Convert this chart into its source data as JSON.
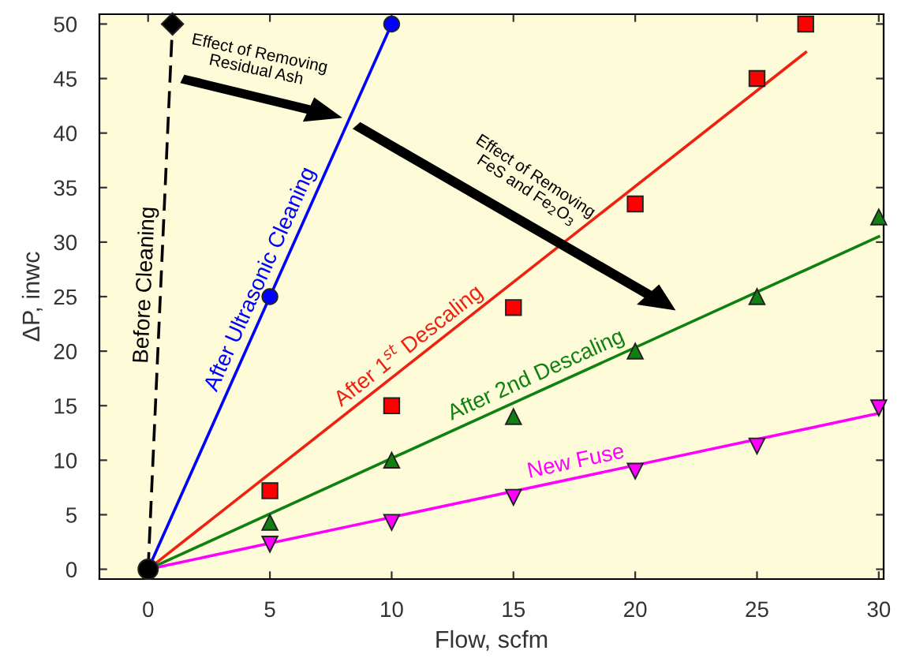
{
  "chart_data": {
    "type": "scatter",
    "xlabel": "Flow, scfm",
    "ylabel": "ΔP, inwc",
    "xlim": [
      -2,
      30.2
    ],
    "ylim": [
      -0.9,
      50.9
    ],
    "xticks": [
      0,
      5,
      10,
      15,
      20,
      25,
      30
    ],
    "yticks": [
      0,
      5,
      10,
      15,
      20,
      25,
      30,
      35,
      40,
      45,
      50
    ],
    "grid": false,
    "legend": false,
    "annotations": [
      "Effect of Removing\nResidual Ash",
      "Effect of Removing\nFeS and Fe$_{2}$O$_{3}$"
    ],
    "series": [
      {
        "type": "line",
        "name": "Before Cleaning",
        "color": "#000000",
        "x": [
          0,
          1
        ],
        "values": [
          0,
          50
        ],
        "line_style": "dashed",
        "marker": "none"
      },
      {
        "color": "#000000",
        "x": [
          0,
          1
        ],
        "values": [
          0,
          50
        ],
        "marker": [
          "circle",
          "diamond"
        ]
      },
      {
        "type": "line",
        "name": "After Ultrasonic Cleaning",
        "color": "#0000ff",
        "x": [
          0,
          10
        ],
        "values": [
          0,
          50
        ],
        "marker": "none"
      },
      {
        "color": "#0000ff",
        "x": [
          5,
          10
        ],
        "values": [
          25,
          50
        ],
        "marker": "circle"
      },
      {
        "type": "line",
        "name": "After 1$^{st}$ Descaling",
        "color": "#ee2211",
        "x": [
          0,
          27
        ],
        "values": [
          0,
          47.4
        ],
        "marker": "none"
      },
      {
        "color": "#ff0000",
        "x": [
          5,
          10,
          15,
          20,
          25,
          27
        ],
        "values": [
          7.2,
          15,
          24,
          33.5,
          45,
          50
        ],
        "marker": "square"
      },
      {
        "type": "line",
        "name": "After 2nd Descaling",
        "color": "#108010",
        "x": [
          0,
          30
        ],
        "values": [
          0,
          30.5
        ],
        "marker": "none"
      },
      {
        "color": "#108010",
        "x": [
          5,
          10,
          15,
          20,
          25,
          30
        ],
        "values": [
          4.3,
          10,
          14,
          20,
          25,
          32.3
        ],
        "marker": "triangle"
      },
      {
        "type": "line",
        "name": "New Fuse",
        "color": "#ff00ff",
        "x": [
          0,
          30
        ],
        "values": [
          0,
          14.3
        ],
        "marker": "none"
      },
      {
        "color": "#ff00ff",
        "x": [
          5,
          10,
          15,
          20,
          25,
          30
        ],
        "values": [
          2.3,
          4.3,
          6.6,
          9,
          11.3,
          14.8
        ],
        "marker": "triangle_down"
      }
    ]
  }
}
